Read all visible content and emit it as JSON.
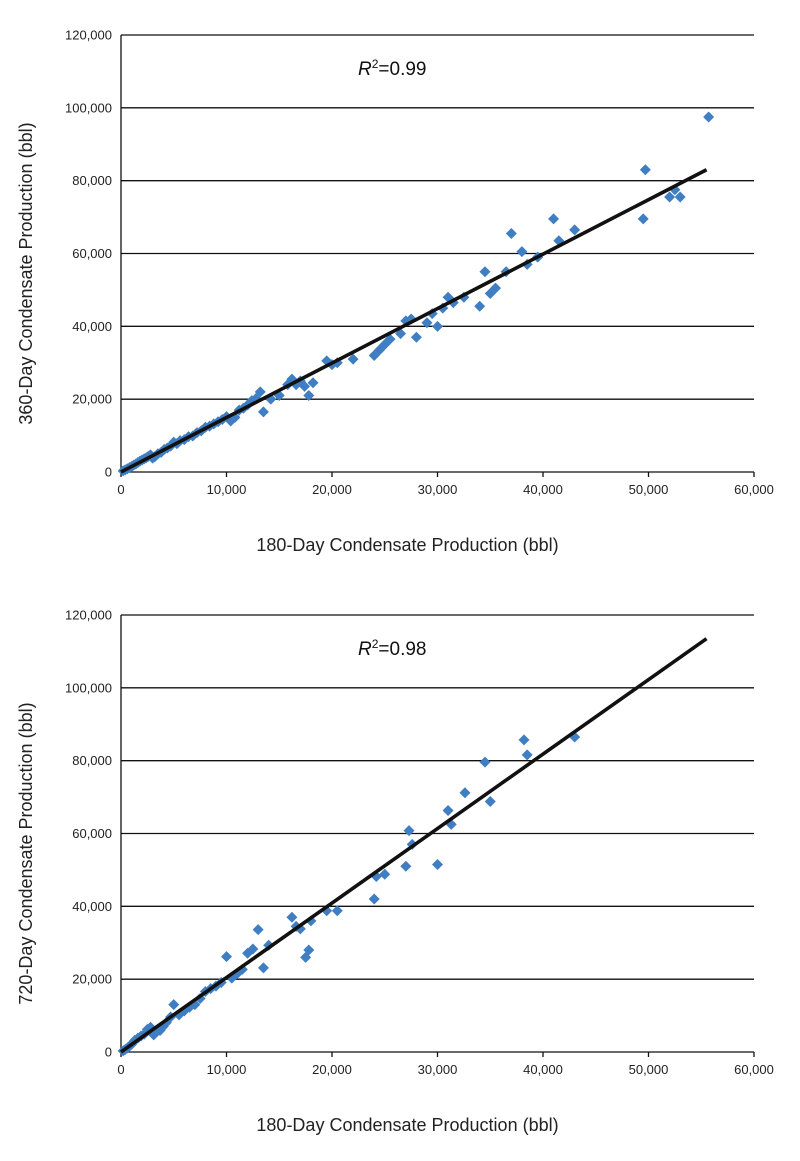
{
  "chart_data": [
    {
      "type": "scatter",
      "xlabel": "180-Day Condensate Production (bbl)",
      "ylabel": "360-Day Condensate Production (bbl)",
      "annotation": {
        "r2_symbol": "R",
        "r2_exponent": "2",
        "r2_value": "=0.99"
      },
      "xlim": [
        0,
        60000
      ],
      "ylim": [
        0,
        120000
      ],
      "x_ticks": [
        "0",
        "10,000",
        "20,000",
        "30,000",
        "40,000",
        "50,000",
        "60,000"
      ],
      "y_ticks": [
        "0",
        "20,000",
        "40,000",
        "60,000",
        "80,000",
        "100,000",
        "120,000"
      ],
      "grid": "horizontal",
      "trendline": {
        "x": [
          0,
          55500
        ],
        "y": [
          0,
          83000
        ]
      },
      "colors": {
        "points": "#3f7ec2",
        "trendline": "#111111"
      },
      "series": [
        {
          "x": [
            200,
            400,
            600,
            800,
            1000,
            1200,
            1400,
            1600,
            1800,
            2000,
            2200,
            2400,
            2600,
            2800,
            3000,
            3200,
            3500,
            3800,
            4100,
            4400,
            4700,
            5000,
            5300,
            5600,
            6000,
            6400,
            6800,
            7200,
            7600,
            8000,
            8400,
            8800,
            9200,
            9600,
            10000,
            10400,
            10800,
            11200,
            11600,
            12000,
            12400,
            12800,
            13200,
            13500,
            14200,
            15000,
            15800,
            16200,
            16600,
            17000,
            17400,
            17800,
            18200,
            19500,
            20000,
            20500,
            22000,
            24000,
            24500,
            25000,
            25500,
            26500,
            27000,
            27500,
            28000,
            29000,
            29500,
            30000,
            30500,
            31000,
            31500,
            32500,
            34000,
            34500,
            35000,
            35500,
            36500,
            37000,
            38000,
            38500,
            39500,
            41000,
            41500,
            43000,
            49500,
            49700,
            52000,
            52500,
            53000,
            55700
          ],
          "y": [
            300,
            600,
            900,
            1200,
            1500,
            1900,
            2200,
            2600,
            3000,
            3300,
            3600,
            3900,
            4300,
            4700,
            3800,
            4200,
            5000,
            5400,
            6200,
            6600,
            7100,
            8200,
            7800,
            8600,
            8900,
            9700,
            9900,
            10800,
            11300,
            12300,
            12600,
            13200,
            13800,
            14400,
            15200,
            14000,
            15000,
            17000,
            17500,
            18400,
            19600,
            20200,
            22000,
            16500,
            20000,
            21000,
            24000,
            25500,
            24000,
            25000,
            23500,
            21000,
            24500,
            30500,
            29500,
            30000,
            31000,
            32000,
            33500,
            35000,
            36500,
            38000,
            41500,
            42000,
            37000,
            41000,
            43500,
            40000,
            45000,
            48000,
            46500,
            48000,
            45500,
            55000,
            49000,
            50500,
            55000,
            65500,
            60500,
            57000,
            59000,
            69500,
            63500,
            66500,
            69500,
            83000,
            75500,
            77500,
            75500,
            97500
          ]
        }
      ]
    },
    {
      "type": "scatter",
      "xlabel": "180-Day Condensate Production (bbl)",
      "ylabel": "720-Day Condensate Production (bbl)",
      "annotation": {
        "r2_symbol": "R",
        "r2_exponent": "2",
        "r2_value": "=0.98"
      },
      "xlim": [
        0,
        60000
      ],
      "ylim": [
        0,
        120000
      ],
      "x_ticks": [
        "0",
        "10,000",
        "20,000",
        "30,000",
        "40,000",
        "50,000",
        "60,000"
      ],
      "y_ticks": [
        "0",
        "20,000",
        "40,000",
        "60,000",
        "80,000",
        "100,000",
        "120,000"
      ],
      "grid": "horizontal",
      "trendline": {
        "x": [
          0,
          55500
        ],
        "y": [
          0,
          113500
        ]
      },
      "colors": {
        "points": "#3f7ec2",
        "trendline": "#111111"
      },
      "series": [
        {
          "x": [
            200,
            400,
            600,
            800,
            1000,
            1300,
            1600,
            1900,
            2200,
            2500,
            2800,
            3100,
            3400,
            3700,
            4000,
            4300,
            4700,
            5000,
            5500,
            6000,
            6500,
            7000,
            7500,
            8000,
            8500,
            9000,
            9500,
            10000,
            10500,
            11000,
            11500,
            12000,
            12500,
            13000,
            13500,
            14000,
            16200,
            16600,
            17000,
            17500,
            17800,
            18000,
            19500,
            20500,
            24000,
            24200,
            25000,
            27000,
            27300,
            27600,
            30000,
            31000,
            31300,
            32600,
            34500,
            35000,
            38200,
            38500,
            43000
          ],
          "y": [
            300,
            700,
            1100,
            1600,
            2100,
            3200,
            3800,
            4400,
            4900,
            6200,
            6800,
            4700,
            6000,
            5900,
            7000,
            8100,
            9600,
            13000,
            10200,
            11300,
            12300,
            13000,
            14700,
            16600,
            17400,
            18100,
            19100,
            26200,
            20300,
            21500,
            22700,
            27100,
            28300,
            33600,
            23100,
            29300,
            37000,
            34500,
            33800,
            26000,
            28000,
            36000,
            38800,
            38800,
            42000,
            48200,
            48800,
            51000,
            60800,
            57000,
            51500,
            66300,
            62500,
            71200,
            79600,
            68800,
            85700,
            81600,
            86500
          ]
        }
      ]
    }
  ]
}
